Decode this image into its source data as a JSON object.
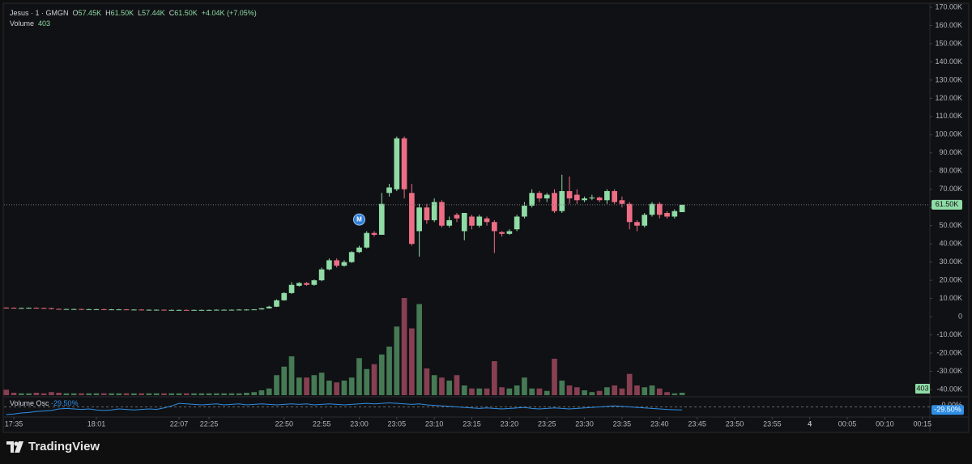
{
  "chart_data": {
    "type": "candlestick",
    "legend": {
      "symbol": "Jesus · 1 · GMGN",
      "open_label": "O",
      "open": "57.45K",
      "high_label": "H",
      "high": "61.50K",
      "low_label": "L",
      "low": "57.44K",
      "close_label": "C",
      "close": "61.50K",
      "change": "+4.04K (+7.05%)",
      "volume_label": "Volume",
      "volume": "403"
    },
    "colors": {
      "up": "#8fdca6",
      "down": "#ee6d85",
      "volume_up": "#457a55",
      "volume_down": "#874052",
      "oscillator": "#2f8ee5"
    },
    "open": [
      5000,
      4900,
      4800,
      4800,
      4900,
      4800,
      4700,
      4300,
      4200,
      4200,
      4200,
      4100,
      4100,
      4100,
      4000,
      4000,
      4000,
      3900,
      3900,
      3800,
      3800,
      3800,
      3700,
      3700,
      3700,
      3600,
      3700,
      3700,
      3700,
      3800,
      3800,
      3800,
      3900,
      3900,
      4000,
      4600,
      5500,
      9000,
      13000,
      17000,
      18500,
      17500,
      20000,
      26000,
      31000,
      28000,
      30000,
      35500,
      38000,
      46000,
      45000,
      68000,
      70000,
      98000,
      68000,
      47000,
      60000,
      53000,
      63000,
      50000,
      56000,
      47000,
      55000,
      50000,
      54000,
      52000,
      46500,
      45500,
      48000,
      55000,
      61000,
      68000,
      65000,
      68000,
      58000,
      69000,
      67000,
      64000,
      65000,
      65500,
      64000,
      69000,
      64000,
      62000,
      52000,
      50000,
      56000,
      62000,
      57000,
      55000,
      57450
    ],
    "high": [
      5200,
      5100,
      5000,
      5100,
      5100,
      5000,
      4900,
      4500,
      4400,
      4400,
      4400,
      4300,
      4300,
      4300,
      4200,
      4200,
      4200,
      4100,
      4100,
      4000,
      4000,
      4000,
      3900,
      3900,
      3900,
      3900,
      3900,
      3900,
      4000,
      4000,
      4000,
      4100,
      4100,
      4200,
      4800,
      6000,
      9500,
      13500,
      19000,
      19000,
      19000,
      20500,
      27000,
      32000,
      32000,
      31000,
      36000,
      39000,
      47000,
      47000,
      68000,
      73000,
      99000,
      99000,
      73000,
      62000,
      62000,
      65000,
      64000,
      55000,
      57000,
      57000,
      56000,
      56000,
      55000,
      53000,
      47000,
      48000,
      56000,
      63000,
      70000,
      69000,
      68000,
      70000,
      78000,
      77000,
      70000,
      66000,
      67000,
      66000,
      70000,
      70000,
      66000,
      63000,
      53000,
      57000,
      63000,
      63000,
      58000,
      59000,
      61500
    ],
    "low": [
      4700,
      4600,
      4600,
      4600,
      4600,
      4500,
      4100,
      4000,
      4000,
      4000,
      3900,
      3900,
      3900,
      3800,
      3800,
      3800,
      3700,
      3700,
      3600,
      3600,
      3600,
      3500,
      3500,
      3500,
      3400,
      3400,
      3500,
      3500,
      3500,
      3600,
      3600,
      3600,
      3700,
      3700,
      3900,
      4500,
      5300,
      8800,
      12500,
      16500,
      17000,
      17000,
      19500,
      25500,
      27000,
      27500,
      29500,
      35000,
      37500,
      44000,
      45000,
      66000,
      69000,
      65000,
      39000,
      33000,
      51000,
      52000,
      49000,
      49000,
      52000,
      42000,
      48000,
      49000,
      50000,
      35000,
      44000,
      45000,
      47000,
      54000,
      60000,
      63000,
      63000,
      57000,
      57000,
      62000,
      62000,
      63000,
      64000,
      63000,
      62000,
      62000,
      60000,
      48000,
      47000,
      49000,
      55000,
      54000,
      54000,
      54000,
      57440
    ],
    "close": [
      4900,
      4800,
      4800,
      4900,
      4800,
      4700,
      4300,
      4200,
      4200,
      4200,
      4100,
      4100,
      4100,
      4000,
      4000,
      4000,
      3900,
      3900,
      3800,
      3800,
      3800,
      3700,
      3700,
      3700,
      3600,
      3700,
      3700,
      3700,
      3800,
      3800,
      3800,
      3900,
      3900,
      4000,
      4600,
      5500,
      9000,
      13000,
      17500,
      18500,
      17500,
      20000,
      26000,
      31000,
      28000,
      30000,
      35500,
      38000,
      46000,
      45000,
      62000,
      71000,
      98000,
      70000,
      40000,
      60000,
      53000,
      63000,
      50000,
      53000,
      54000,
      57000,
      50000,
      55000,
      52000,
      47000,
      45500,
      47000,
      55000,
      61000,
      68000,
      65000,
      67000,
      58000,
      69000,
      65000,
      64000,
      65000,
      65500,
      64000,
      69000,
      63000,
      62000,
      52000,
      50000,
      56000,
      62000,
      56000,
      55000,
      58000,
      61500
    ],
    "volume": [
      900,
      400,
      300,
      300,
      400,
      300,
      500,
      400,
      300,
      300,
      300,
      300,
      300,
      300,
      300,
      300,
      300,
      300,
      300,
      300,
      300,
      300,
      300,
      300,
      300,
      300,
      300,
      300,
      300,
      300,
      300,
      300,
      400,
      500,
      800,
      1100,
      3300,
      4700,
      6400,
      2900,
      2900,
      3300,
      3700,
      2400,
      2100,
      2400,
      2900,
      6100,
      4300,
      5100,
      6700,
      8000,
      11300,
      16000,
      11000,
      15000,
      4400,
      3300,
      2900,
      2400,
      3300,
      1600,
      1100,
      1100,
      1100,
      5600,
      1300,
      1100,
      1600,
      2900,
      1100,
      1100,
      700,
      6000,
      2400,
      1600,
      1300,
      800,
      500,
      700,
      1300,
      1600,
      1100,
      3500,
      1600,
      1300,
      1600,
      1100,
      500,
      300,
      403
    ],
    "ylim": [
      -44000,
      174000
    ],
    "yticks": [
      {
        "value": 170000,
        "label": "170.00K"
      },
      {
        "value": 160000,
        "label": "160.00K"
      },
      {
        "value": 150000,
        "label": "150.00K"
      },
      {
        "value": 140000,
        "label": "140.00K"
      },
      {
        "value": 130000,
        "label": "130.00K"
      },
      {
        "value": 120000,
        "label": "120.00K"
      },
      {
        "value": 110000,
        "label": "110.00K"
      },
      {
        "value": 100000,
        "label": "100.00K"
      },
      {
        "value": 90000,
        "label": "90.00K"
      },
      {
        "value": 80000,
        "label": "80.00K"
      },
      {
        "value": 70000,
        "label": "70.00K"
      },
      {
        "value": 60000,
        "label": "60.00K"
      },
      {
        "value": 50000,
        "label": "50.00K"
      },
      {
        "value": 40000,
        "label": "40.00K"
      },
      {
        "value": 30000,
        "label": "30.00K"
      },
      {
        "value": 20000,
        "label": "20.00K"
      },
      {
        "value": 10000,
        "label": "10.00K"
      },
      0,
      {
        "value": -10000,
        "label": "-10.00K"
      },
      {
        "value": -20000,
        "label": "-20.00K"
      },
      {
        "value": -30000,
        "label": "-30.00K"
      },
      {
        "value": -40000,
        "label": "-40.00K"
      }
    ],
    "xlim": [
      -0.3,
      123
    ],
    "xticks": [
      {
        "value": 1,
        "label": "17:35"
      },
      {
        "value": 12,
        "label": "18:01"
      },
      {
        "value": 23,
        "label": "22:07"
      },
      {
        "value": 27,
        "label": "22:25"
      },
      {
        "value": 37,
        "label": "22:50"
      },
      {
        "value": 42,
        "label": "22:55"
      },
      {
        "value": 47,
        "label": "23:00"
      },
      {
        "value": 52,
        "label": "23:05"
      },
      {
        "value": 57,
        "label": "23:10"
      },
      {
        "value": 62,
        "label": "23:15"
      },
      {
        "value": 67,
        "label": "23:20"
      },
      {
        "value": 72,
        "label": "23:25"
      },
      {
        "value": 77,
        "label": "23:30"
      },
      {
        "value": 82,
        "label": "23:35"
      },
      {
        "value": 87,
        "label": "23:40"
      },
      {
        "value": 92,
        "label": "23:45"
      },
      {
        "value": 97,
        "label": "23:50"
      },
      {
        "value": 102,
        "label": "23:55"
      },
      {
        "value": 107,
        "label": "4"
      },
      {
        "value": 112,
        "label": "00:05"
      },
      {
        "value": 117,
        "label": "00:10"
      },
      {
        "value": 122,
        "label": "00:15"
      }
    ],
    "grid": false,
    "last_price": {
      "value": 61500,
      "label": "61.50K"
    },
    "last_volume": {
      "value": 403,
      "label": "403"
    },
    "markers": [
      {
        "index": 47,
        "price": 53400,
        "label": "M"
      }
    ],
    "oscillator": {
      "name": "Volume Osc",
      "values": [
        -75,
        -70,
        -60,
        -55,
        -45,
        -40,
        -35,
        -20,
        -15,
        -20,
        -25,
        -20,
        -30,
        -35,
        -30,
        -20,
        -25,
        -30,
        -25,
        -20,
        -25,
        -10,
        10,
        35,
        30,
        25,
        20,
        25,
        30,
        20,
        25,
        30,
        20,
        25,
        30,
        25,
        20,
        25,
        30,
        25,
        30,
        20,
        25,
        30,
        25,
        20,
        25,
        30,
        35,
        30,
        35,
        40,
        35,
        30,
        25,
        30,
        20,
        15,
        10,
        5,
        0,
        -5,
        -10,
        -15,
        -10,
        -15,
        -20,
        -15,
        -10,
        -5,
        -15,
        -20,
        -15,
        -10,
        -15,
        -20,
        -15,
        -10,
        -5,
        0,
        5,
        10,
        5,
        0,
        -5,
        -10,
        -15,
        -20,
        -25,
        -28,
        -29.5
      ],
      "ylim": [
        -100,
        100
      ],
      "yticks": [
        {
          "value": 0,
          "label": "0.00%"
        }
      ],
      "last": {
        "value": -29.5,
        "label": "-29.50%"
      }
    },
    "brand": "TradingView"
  }
}
